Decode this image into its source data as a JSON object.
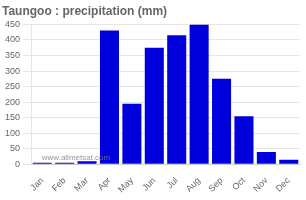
{
  "chart_data": {
    "type": "bar",
    "title": "Taungoo : precipitation (mm)",
    "categories": [
      "Jan",
      "Feb",
      "Mar",
      "Apr",
      "May",
      "Jun",
      "Jul",
      "Aug",
      "Sep",
      "Oct",
      "Nov",
      "Dec"
    ],
    "values": [
      5,
      5,
      10,
      430,
      195,
      375,
      415,
      450,
      275,
      155,
      40,
      15
    ],
    "color": "#0000dd",
    "ylim": [
      0,
      450
    ],
    "yticks": [
      0,
      50,
      100,
      150,
      200,
      250,
      300,
      350,
      400,
      450
    ],
    "grid": true,
    "annotations": [
      "www.allmetsat.com"
    ]
  }
}
